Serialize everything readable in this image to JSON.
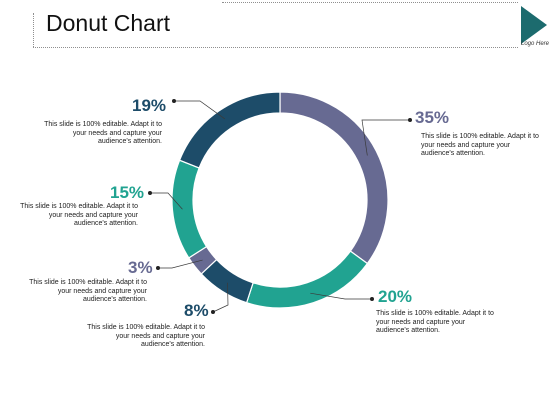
{
  "slide": {
    "title": "Donut Chart",
    "logo_text": "Logo Here",
    "accent_color": "#1c6b6e"
  },
  "chart_data": {
    "type": "pie",
    "donut": true,
    "categories": [
      "35%",
      "20%",
      "8%",
      "3%",
      "15%",
      "19%"
    ],
    "values": [
      35,
      20,
      8,
      3,
      15,
      19
    ],
    "colors": [
      "#676a92",
      "#21a391",
      "#1d4c69",
      "#676a92",
      "#21a391",
      "#1d4c69"
    ],
    "data_labels": [
      "35%",
      "20%",
      "8%",
      "3%",
      "15%",
      "19%"
    ],
    "descriptions": [
      "This slide is 100% editable. Adapt it to your needs and capture your audience's attention.",
      "This slide is 100% editable. Adapt it to your needs and capture your audience's attention.",
      "This slide is 100% editable. Adapt it to your needs and capture your audience's attention.",
      "This slide is 100% editable. Adapt it to your needs and capture your audience's attention.",
      "This slide is 100% editable. Adapt it to your needs and capture your audience's attention.",
      "This slide is 100% editable. Adapt it to your needs and capture your audience's attention."
    ],
    "title": "",
    "legend": "none"
  }
}
